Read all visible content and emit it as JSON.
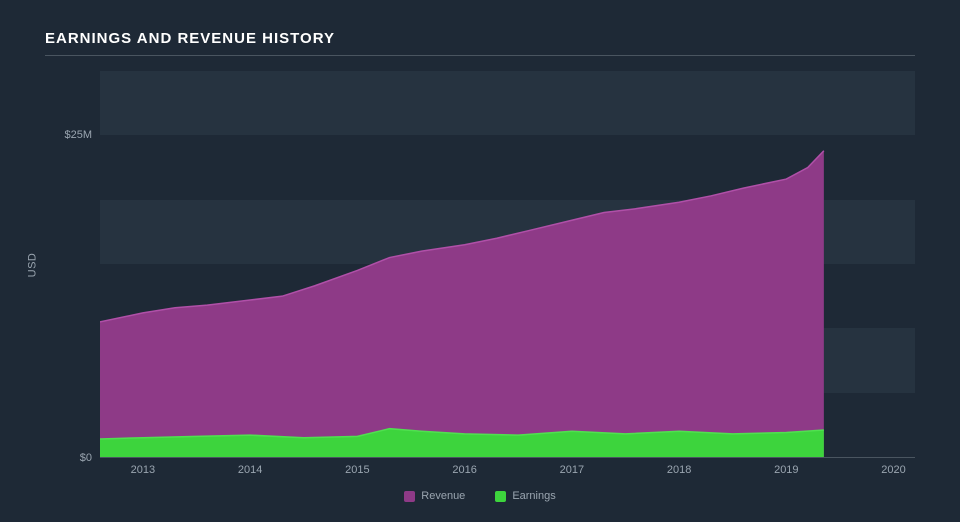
{
  "title": "EARNINGS AND REVENUE HISTORY",
  "chart": {
    "type": "area",
    "y_label": "USD",
    "background_color": "#1e2936",
    "grid_band_color": "#263340",
    "axis_color": "#4a5560",
    "tick_text_color": "#9aa5b0",
    "ylim": [
      0,
      30
    ],
    "y_ticks": [
      {
        "pos": 0,
        "label": "$0"
      },
      {
        "pos": 25,
        "label": "$25M"
      }
    ],
    "grid_bands": [
      {
        "from": 5,
        "to": 10
      },
      {
        "from": 15,
        "to": 20
      },
      {
        "from": 25,
        "to": 30
      }
    ],
    "xlim": [
      2012.6,
      2020.2
    ],
    "x_ticks": [
      2013,
      2014,
      2015,
      2016,
      2017,
      2018,
      2019,
      2020
    ],
    "series": [
      {
        "name": "Revenue",
        "color": "#8e3a87",
        "stroke": "#b050a8",
        "data": [
          {
            "x": 2012.6,
            "y": 10.5
          },
          {
            "x": 2013.0,
            "y": 11.2
          },
          {
            "x": 2013.3,
            "y": 11.6
          },
          {
            "x": 2013.6,
            "y": 11.8
          },
          {
            "x": 2014.0,
            "y": 12.2
          },
          {
            "x": 2014.3,
            "y": 12.5
          },
          {
            "x": 2014.6,
            "y": 13.3
          },
          {
            "x": 2015.0,
            "y": 14.5
          },
          {
            "x": 2015.3,
            "y": 15.5
          },
          {
            "x": 2015.6,
            "y": 16.0
          },
          {
            "x": 2016.0,
            "y": 16.5
          },
          {
            "x": 2016.3,
            "y": 17.0
          },
          {
            "x": 2016.6,
            "y": 17.6
          },
          {
            "x": 2017.0,
            "y": 18.4
          },
          {
            "x": 2017.3,
            "y": 19.0
          },
          {
            "x": 2017.6,
            "y": 19.3
          },
          {
            "x": 2018.0,
            "y": 19.8
          },
          {
            "x": 2018.3,
            "y": 20.3
          },
          {
            "x": 2018.6,
            "y": 20.9
          },
          {
            "x": 2019.0,
            "y": 21.6
          },
          {
            "x": 2019.2,
            "y": 22.5
          },
          {
            "x": 2019.35,
            "y": 23.8
          }
        ]
      },
      {
        "name": "Earnings",
        "color": "#3dd43d",
        "stroke": "#50e050",
        "data": [
          {
            "x": 2012.6,
            "y": 1.4
          },
          {
            "x": 2013.0,
            "y": 1.5
          },
          {
            "x": 2013.5,
            "y": 1.6
          },
          {
            "x": 2014.0,
            "y": 1.7
          },
          {
            "x": 2014.5,
            "y": 1.5
          },
          {
            "x": 2015.0,
            "y": 1.6
          },
          {
            "x": 2015.3,
            "y": 2.2
          },
          {
            "x": 2015.6,
            "y": 2.0
          },
          {
            "x": 2016.0,
            "y": 1.8
          },
          {
            "x": 2016.5,
            "y": 1.7
          },
          {
            "x": 2017.0,
            "y": 2.0
          },
          {
            "x": 2017.5,
            "y": 1.8
          },
          {
            "x": 2018.0,
            "y": 2.0
          },
          {
            "x": 2018.5,
            "y": 1.8
          },
          {
            "x": 2019.0,
            "y": 1.9
          },
          {
            "x": 2019.35,
            "y": 2.1
          }
        ]
      }
    ],
    "legend": [
      {
        "label": "Revenue",
        "color": "#8e3a87"
      },
      {
        "label": "Earnings",
        "color": "#3dd43d"
      }
    ]
  }
}
